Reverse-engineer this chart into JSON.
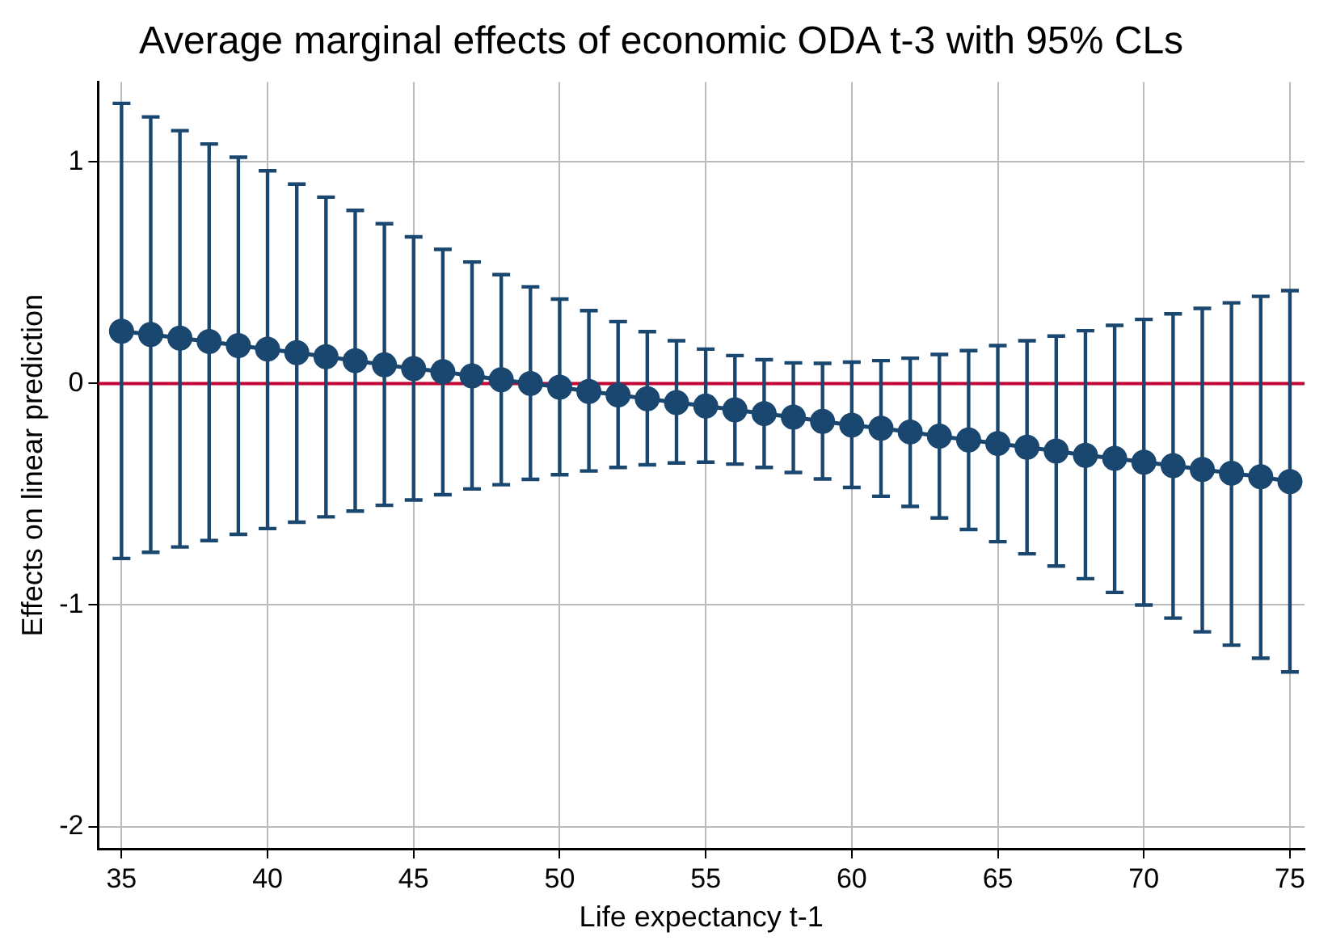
{
  "chart_data": {
    "type": "line",
    "title": "Average marginal effects of economic ODA t-3 with 95% CLs",
    "xlabel": "Life expectancy t-1",
    "ylabel": "Effects on linear prediction",
    "x": [
      35,
      36,
      37,
      38,
      39,
      40,
      41,
      42,
      43,
      44,
      45,
      46,
      47,
      48,
      49,
      50,
      51,
      52,
      53,
      54,
      55,
      56,
      57,
      58,
      59,
      60,
      61,
      62,
      63,
      64,
      65,
      66,
      67,
      68,
      69,
      70,
      71,
      72,
      73,
      74,
      75
    ],
    "series": [
      {
        "color": "#1a476f",
        "values": [
          0.236,
          0.221,
          0.205,
          0.189,
          0.171,
          0.155,
          0.139,
          0.121,
          0.103,
          0.084,
          0.067,
          0.053,
          0.034,
          0.017,
          0,
          -0.017,
          -0.036,
          -0.052,
          -0.069,
          -0.086,
          -0.102,
          -0.119,
          -0.136,
          -0.152,
          -0.171,
          -0.188,
          -0.202,
          -0.219,
          -0.238,
          -0.255,
          -0.271,
          -0.288,
          -0.305,
          -0.324,
          -0.338,
          -0.355,
          -0.371,
          -0.388,
          -0.405,
          -0.421,
          -0.443
        ],
        "errors": [
          [
            -0.79,
            1.264
          ],
          [
            -0.762,
            1.203
          ],
          [
            -0.738,
            1.141
          ],
          [
            -0.709,
            1.081
          ],
          [
            -0.681,
            1.021
          ],
          [
            -0.655,
            0.96
          ],
          [
            -0.626,
            0.9
          ],
          [
            -0.602,
            0.841
          ],
          [
            -0.576,
            0.781
          ],
          [
            -0.55,
            0.721
          ],
          [
            -0.526,
            0.662
          ],
          [
            -0.502,
            0.605
          ],
          [
            -0.476,
            0.548
          ],
          [
            -0.457,
            0.491
          ],
          [
            -0.433,
            0.436
          ],
          [
            -0.412,
            0.381
          ],
          [
            -0.395,
            0.329
          ],
          [
            -0.379,
            0.279
          ],
          [
            -0.367,
            0.234
          ],
          [
            -0.359,
            0.193
          ],
          [
            -0.355,
            0.155
          ],
          [
            -0.364,
            0.126
          ],
          [
            -0.379,
            0.107
          ],
          [
            -0.402,
            0.093
          ],
          [
            -0.431,
            0.091
          ],
          [
            -0.469,
            0.096
          ],
          [
            -0.509,
            0.103
          ],
          [
            -0.555,
            0.114
          ],
          [
            -0.607,
            0.131
          ],
          [
            -0.659,
            0.148
          ],
          [
            -0.714,
            0.171
          ],
          [
            -0.769,
            0.193
          ],
          [
            -0.824,
            0.214
          ],
          [
            -0.881,
            0.238
          ],
          [
            -0.943,
            0.262
          ],
          [
            -1.0,
            0.289
          ],
          [
            -1.059,
            0.314
          ],
          [
            -1.121,
            0.339
          ],
          [
            -1.181,
            0.364
          ],
          [
            -1.24,
            0.393
          ],
          [
            -1.302,
            0.419
          ]
        ]
      }
    ],
    "xlim": [
      34.2,
      75.5
    ],
    "xticks": [
      35,
      40,
      45,
      50,
      55,
      60,
      65,
      70,
      75
    ],
    "ylim": [
      -2.1,
      1.36
    ],
    "yticks": [
      -2,
      -1,
      0,
      1
    ],
    "ref_lines": [
      {
        "axis": "y",
        "value": 0,
        "color": "#c10534"
      }
    ],
    "grid": true,
    "marker": "circle",
    "line_style": "solid",
    "legend": false
  }
}
